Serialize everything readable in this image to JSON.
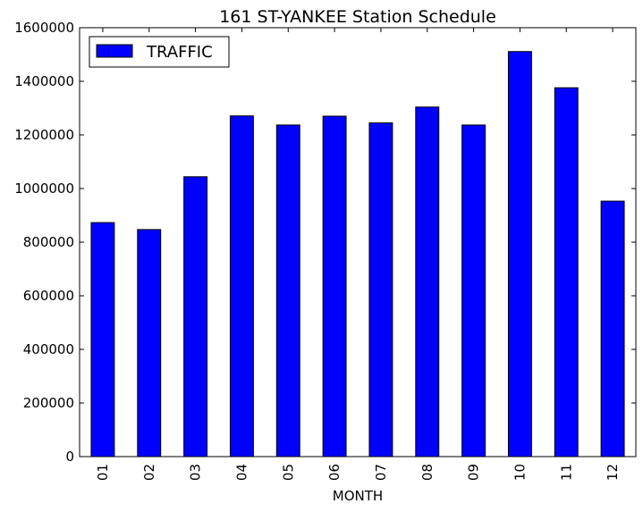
{
  "chart_data": {
    "type": "bar",
    "title": "161 ST-YANKEE Station Schedule",
    "xlabel": "MONTH",
    "ylabel": "",
    "categories": [
      "01",
      "02",
      "03",
      "04",
      "05",
      "06",
      "07",
      "08",
      "09",
      "10",
      "11",
      "12"
    ],
    "series": [
      {
        "name": "TRAFFIC",
        "color": "#0000ff",
        "values": [
          873000,
          847000,
          1044000,
          1271000,
          1237000,
          1270000,
          1245000,
          1304000,
          1237000,
          1511000,
          1376000,
          953000
        ]
      }
    ],
    "ylim": [
      0,
      1600000
    ],
    "yticks": [
      "0",
      "200000",
      "400000",
      "600000",
      "800000",
      "1000000",
      "1200000",
      "1400000",
      "1600000"
    ],
    "grid": false,
    "legend_position": "top-left"
  }
}
